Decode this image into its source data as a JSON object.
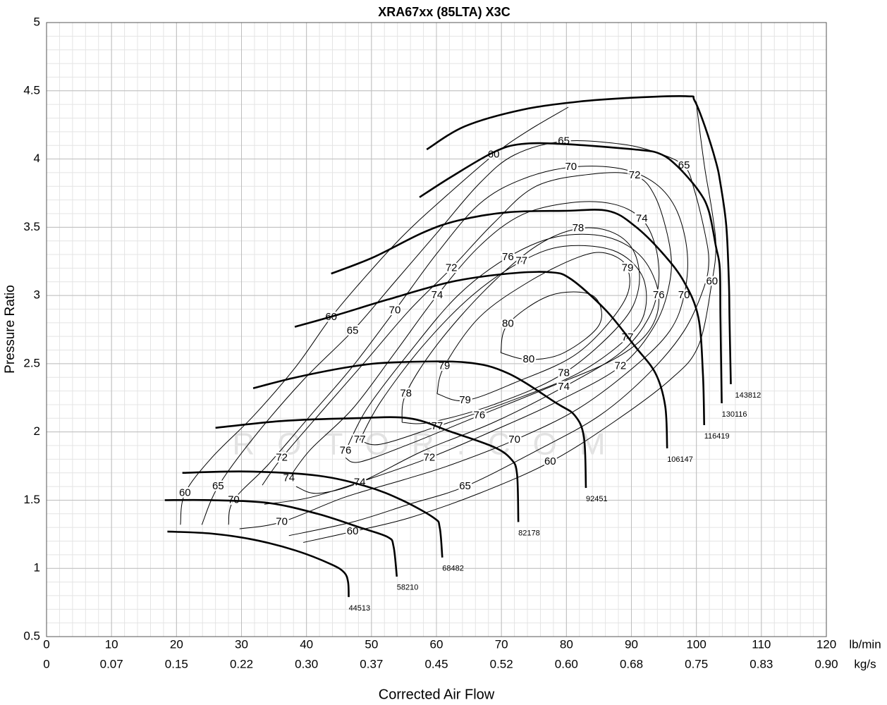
{
  "chart_data": {
    "type": "line",
    "title": "XRA67xx (85LTA) X3C",
    "xlabel": "Corrected Air Flow",
    "ylabel": "Pressure Ratio",
    "xunit": "lb/min",
    "x2unit": "kg/s",
    "watermark": "ROTOR.COM",
    "xlim": [
      0,
      120
    ],
    "ylim": [
      0.5,
      5
    ],
    "xticks": [
      0,
      10,
      20,
      30,
      40,
      50,
      60,
      70,
      80,
      90,
      100,
      110,
      120
    ],
    "x2ticks": [
      {
        "value": 0,
        "label": "0"
      },
      {
        "value": 10,
        "label": "0.07"
      },
      {
        "value": 20,
        "label": "0.15"
      },
      {
        "value": 30,
        "label": "0.22"
      },
      {
        "value": 40,
        "label": "0.30"
      },
      {
        "value": 50,
        "label": "0.37"
      },
      {
        "value": 60,
        "label": "0.45"
      },
      {
        "value": 70,
        "label": "0.52"
      },
      {
        "value": 80,
        "label": "0.60"
      },
      {
        "value": 90,
        "label": "0.68"
      },
      {
        "value": 100,
        "label": "0.75"
      },
      {
        "value": 110,
        "label": "0.83"
      },
      {
        "value": 120,
        "label": "0.90"
      }
    ],
    "yticks": [
      0.5,
      1,
      1.5,
      2,
      2.5,
      3,
      3.5,
      4,
      4.5,
      5
    ],
    "grid": true,
    "minor_xstep": 2,
    "minor_ystep": 0.1,
    "series": [
      {
        "name": "44513",
        "color": "#000000",
        "x": [
          18.6,
          25.4,
          31.9,
          38.4,
          43.8,
          45.8,
          46.4,
          46.5
        ],
        "y": [
          1.27,
          1.255,
          1.21,
          1.13,
          1.03,
          0.97,
          0.9,
          0.79
        ]
      },
      {
        "name": "58210",
        "color": "#000000",
        "x": [
          18.2,
          25.4,
          34.1,
          41.7,
          48.2,
          52.5,
          53.4,
          53.9
        ],
        "y": [
          1.5,
          1.5,
          1.48,
          1.4,
          1.3,
          1.23,
          1.16,
          0.94
        ]
      },
      {
        "name": "68482",
        "color": "#000000",
        "x": [
          20.9,
          30.8,
          41.7,
          49.3,
          54.7,
          59.6,
          60.5,
          60.9
        ],
        "y": [
          1.7,
          1.71,
          1.68,
          1.6,
          1.5,
          1.37,
          1.3,
          1.08
        ]
      },
      {
        "name": "82178",
        "color": "#000000",
        "x": [
          26.0,
          36.2,
          47.1,
          55.8,
          62.3,
          68.8,
          71.5,
          72.4,
          72.6
        ],
        "y": [
          2.03,
          2.08,
          2.1,
          2.1,
          2.0,
          1.89,
          1.8,
          1.69,
          1.34
        ]
      },
      {
        "name": "92451",
        "color": "#000000",
        "x": [
          31.8,
          38.4,
          47.1,
          53.6,
          64.4,
          71.0,
          78.5,
          81.3,
          82.7,
          83.0
        ],
        "y": [
          2.32,
          2.4,
          2.48,
          2.51,
          2.51,
          2.43,
          2.21,
          2.12,
          1.96,
          1.59
        ]
      },
      {
        "name": "106147",
        "color": "#000000",
        "x": [
          38.2,
          44.9,
          52.5,
          62.3,
          71.0,
          77.5,
          80.7,
          86.1,
          90.5,
          93.7,
          95.2,
          95.5
        ],
        "y": [
          2.77,
          2.86,
          2.97,
          3.1,
          3.16,
          3.17,
          3.12,
          2.89,
          2.63,
          2.43,
          2.19,
          1.88
        ]
      },
      {
        "name": "116419",
        "color": "#000000",
        "x": [
          43.8,
          50.3,
          57.9,
          63.4,
          71.0,
          79.6,
          86.4,
          90.5,
          94.8,
          98.1,
          100.3,
          101.0,
          101.2
        ],
        "y": [
          3.16,
          3.28,
          3.46,
          3.55,
          3.61,
          3.62,
          3.62,
          3.51,
          3.31,
          3.1,
          2.84,
          2.43,
          2.05
        ]
      },
      {
        "name": "130116",
        "color": "#000000",
        "x": [
          57.4,
          62.3,
          68.8,
          73.1,
          79.6,
          90.5,
          94.3,
          97.0,
          100.3,
          101.9,
          103.0,
          103.6,
          103.7,
          103.9
        ],
        "y": [
          3.72,
          3.87,
          4.05,
          4.11,
          4.11,
          4.07,
          4.04,
          3.95,
          3.77,
          3.62,
          3.36,
          3.2,
          2.84,
          2.21
        ]
      },
      {
        "name": "143812",
        "color": "#000000",
        "x": [
          58.5,
          64.4,
          73.1,
          81.8,
          90.5,
          98.6,
          99.7,
          101.3,
          103.0,
          103.7,
          104.6,
          105.0,
          105.1,
          105.3
        ],
        "y": [
          4.07,
          4.24,
          4.36,
          4.42,
          4.45,
          4.46,
          4.43,
          4.24,
          3.98,
          3.82,
          3.51,
          3.1,
          2.82,
          2.35
        ]
      }
    ],
    "efficiency_contours": [
      {
        "name": "60",
        "x": [
          20.6,
          21.3,
          25.4,
          31.9,
          38.4,
          43.8,
          49.3,
          54.7,
          60.1,
          68.8,
          74.2,
          80.3
        ],
        "y": [
          1.32,
          1.55,
          1.81,
          2.12,
          2.48,
          2.84,
          3.15,
          3.43,
          3.67,
          4.03,
          4.21,
          4.38
        ]
      },
      {
        "name": "60",
        "x": [
          39.5,
          47.1,
          55.8,
          66.6,
          77.5,
          87.2,
          95.9,
          100.3,
          102.4,
          103.0,
          102.4,
          101.3,
          100.3,
          100.0
        ],
        "y": [
          1.19,
          1.27,
          1.37,
          1.55,
          1.78,
          2.07,
          2.38,
          2.63,
          3.1,
          3.36,
          3.62,
          3.93,
          4.29,
          4.42
        ]
      },
      {
        "name": "65",
        "x": [
          23.9,
          26.4,
          31.9,
          39.5,
          47.1,
          53.6,
          60.1,
          66.6,
          72.0,
          79.6,
          88.3,
          93.7,
          98.1,
          99.7,
          101.3,
          101.9,
          101.1,
          98.1,
          92.7,
          85.1,
          75.3,
          64.4,
          55.8,
          47.1,
          37.3
        ],
        "y": [
          1.32,
          1.6,
          1.96,
          2.38,
          2.74,
          3.1,
          3.46,
          3.82,
          4.03,
          4.13,
          4.11,
          4.05,
          3.95,
          3.77,
          3.46,
          3.25,
          3.05,
          2.74,
          2.43,
          2.12,
          1.86,
          1.6,
          1.47,
          1.34,
          1.24
        ]
      },
      {
        "name": "70",
        "x": [
          28.0,
          28.8,
          34.1,
          40.6,
          47.1,
          53.6,
          60.1,
          66.6,
          73.1,
          80.7,
          88.3,
          93.7,
          97.0,
          98.6,
          98.1,
          95.9,
          90.5,
          81.8,
          72.0,
          62.3,
          55.0,
          45.8,
          36.2,
          29.7
        ],
        "y": [
          1.32,
          1.5,
          1.76,
          2.12,
          2.48,
          2.89,
          3.31,
          3.67,
          3.85,
          3.94,
          3.93,
          3.82,
          3.62,
          3.31,
          3.0,
          2.74,
          2.48,
          2.17,
          1.94,
          1.76,
          1.65,
          1.52,
          1.34,
          1.29
        ]
      },
      {
        "name": "72",
        "x": [
          33.2,
          36.2,
          42.7,
          49.3,
          55.8,
          62.3,
          68.8,
          75.3,
          84.0,
          90.5,
          93.7,
          95.9,
          95.9,
          93.7,
          88.3,
          78.5,
          68.8,
          58.9,
          49.3,
          40.6,
          33.5
        ],
        "y": [
          1.61,
          1.81,
          2.17,
          2.53,
          2.89,
          3.2,
          3.53,
          3.8,
          3.89,
          3.88,
          3.72,
          3.36,
          3.1,
          2.79,
          2.48,
          2.22,
          2.01,
          1.81,
          1.65,
          1.52,
          1.47
        ]
      },
      {
        "name": "74",
        "x": [
          37.3,
          40.6,
          47.1,
          53.6,
          60.1,
          66.6,
          73.1,
          80.7,
          87.2,
          91.6,
          93.7,
          94.2,
          92.7,
          88.3,
          79.6,
          68.8,
          57.9,
          48.2,
          41.7,
          38.4
        ],
        "y": [
          1.66,
          1.87,
          2.17,
          2.58,
          3.0,
          3.36,
          3.59,
          3.68,
          3.67,
          3.56,
          3.36,
          3.1,
          2.84,
          2.58,
          2.33,
          2.07,
          1.86,
          1.63,
          1.55,
          1.6
        ]
      },
      {
        "name": "76",
        "x": [
          46.0,
          49.3,
          55.8,
          63.3,
          71.0,
          78.5,
          86.1,
          91.6,
          94.2,
          92.7,
          87.2,
          77.5,
          66.6,
          55.8,
          48.2,
          46.0
        ],
        "y": [
          1.86,
          2.17,
          2.58,
          3.0,
          3.28,
          3.43,
          3.43,
          3.28,
          3.0,
          2.74,
          2.53,
          2.33,
          2.12,
          1.91,
          1.78,
          1.81
        ]
      },
      {
        "name": "77",
        "x": [
          48.2,
          51.4,
          57.9,
          65.5,
          73.1,
          79.6,
          87.2,
          91.6,
          92.1,
          89.4,
          81.8,
          71.0,
          60.1,
          51.4,
          48.2
        ],
        "y": [
          1.94,
          2.22,
          2.63,
          3.0,
          3.25,
          3.36,
          3.33,
          3.15,
          2.89,
          2.69,
          2.43,
          2.22,
          2.04,
          1.91,
          1.94
        ]
      },
      {
        "name": "78",
        "x": [
          54.7,
          55.3,
          60.1,
          67.7,
          75.3,
          81.8,
          87.2,
          90.5,
          91.1,
          88.3,
          79.6,
          68.8,
          59.0,
          54.7
        ],
        "y": [
          2.07,
          2.28,
          2.64,
          3.05,
          3.36,
          3.49,
          3.46,
          3.31,
          3.05,
          2.79,
          2.43,
          2.2,
          2.07,
          2.07
        ]
      },
      {
        "name": "79",
        "x": [
          60.1,
          61.2,
          66.6,
          74.2,
          81.8,
          86.1,
          89.4,
          88.8,
          81.8,
          72.0,
          64.4,
          60.1
        ],
        "y": [
          2.28,
          2.48,
          2.84,
          3.1,
          3.28,
          3.31,
          3.2,
          2.95,
          2.58,
          2.36,
          2.23,
          2.28
        ]
      },
      {
        "name": "80",
        "x": [
          69.9,
          71.0,
          77.5,
          84.0,
          85.1,
          79.6,
          74.2,
          69.9
        ],
        "y": [
          2.58,
          2.79,
          3.0,
          3.0,
          2.79,
          2.58,
          2.53,
          2.58
        ]
      }
    ]
  }
}
